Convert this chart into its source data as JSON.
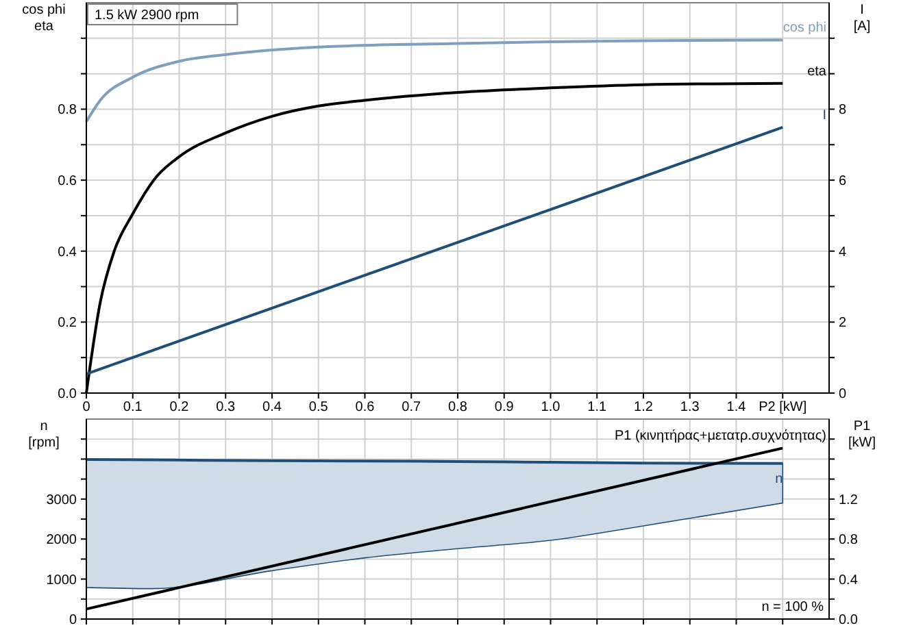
{
  "chart_data": [
    {
      "type": "line",
      "title": "1.5 kW   2900 rpm",
      "ylabel": "cos phi\neta",
      "y2label": "I\n[A]",
      "grid": true,
      "xlim": [
        0,
        1.6
      ],
      "xticks": [
        {
          "value": 0,
          "label": "0"
        },
        0.1,
        0.2,
        0.3,
        0.4,
        0.5,
        0.6,
        0.7,
        0.8,
        0.9,
        {
          "value": 1,
          "label": "1.0"
        },
        1.1,
        1.2,
        1.3,
        1.4,
        {
          "value": 1.5,
          "label": "P2 [kW]"
        }
      ],
      "ylim": [
        0,
        1.1
      ],
      "yticks": [
        {
          "value": 0,
          "label": "0.0"
        },
        {
          "value": 0.1,
          "label": null
        },
        0.2,
        {
          "value": 0.3,
          "label": null
        },
        0.4,
        {
          "value": 0.5,
          "label": null
        },
        0.6,
        {
          "value": 0.7,
          "label": null
        },
        0.8,
        {
          "value": 0.9,
          "label": null
        },
        {
          "value": 1,
          "label": null
        }
      ],
      "y2lim": [
        0,
        11
      ],
      "y2ticks": [
        0,
        {
          "value": 1,
          "label": null
        },
        2,
        {
          "value": 3,
          "label": null
        },
        4,
        {
          "value": 5,
          "label": null
        },
        6,
        {
          "value": 7,
          "label": null
        },
        8,
        {
          "value": 9,
          "label": null
        },
        {
          "value": 10,
          "label": null
        }
      ],
      "series": [
        {
          "name": "cos phi",
          "color": "#7f9fbf",
          "x": [
            0,
            0.03,
            0.1,
            0.2,
            0.3,
            0.5,
            0.8,
            1.0,
            1.2,
            1.5
          ],
          "values": [
            0.765,
            0.825,
            0.89,
            0.935,
            0.954,
            0.975,
            0.985,
            0.99,
            0.993,
            0.995
          ]
        },
        {
          "name": "eta",
          "color": "#000000",
          "x": [
            0,
            0.03,
            0.06,
            0.1,
            0.15,
            0.2,
            0.3,
            0.4,
            0.5,
            0.6,
            0.8,
            1.0,
            1.2,
            1.5
          ],
          "values": [
            0,
            0.256,
            0.4,
            0.505,
            0.608,
            0.666,
            0.733,
            0.78,
            0.809,
            0.825,
            0.847,
            0.86,
            0.869,
            0.873
          ]
        },
        {
          "name": "I",
          "color": "#1f4e79",
          "axis": "y2",
          "x": [
            0,
            1.5
          ],
          "values": [
            0.54,
            7.49
          ]
        }
      ]
    },
    {
      "type": "line",
      "ylabel": "n\n[rpm]",
      "y2label": "P1\n[kW]",
      "grid": true,
      "tick_labels": "y",
      "annotations": [
        "n = 100 %"
      ],
      "xlim": [
        0,
        1.6
      ],
      "xticks": [
        0,
        0.1,
        0.2,
        0.3,
        0.4,
        0.5,
        0.6,
        0.7,
        0.8,
        0.9,
        1,
        1.1,
        1.2,
        1.3,
        1.4,
        1.5
      ],
      "ylim": [
        0,
        5000
      ],
      "yticks": [
        0,
        {
          "value": 500,
          "label": null
        },
        1000,
        {
          "value": 1500,
          "label": null
        },
        2000,
        {
          "value": 2500,
          "label": null
        },
        3000,
        {
          "value": 3500,
          "label": null
        },
        {
          "value": 4000,
          "label": null
        },
        {
          "value": 4500,
          "label": null
        }
      ],
      "y2lim": [
        0,
        2
      ],
      "y2ticks": [
        {
          "value": 0,
          "label": "0.0"
        },
        {
          "value": 0.2,
          "label": null
        },
        0.4,
        {
          "value": 0.6,
          "label": null
        },
        0.8,
        {
          "value": 1,
          "label": null
        },
        1.2,
        {
          "value": 1.4,
          "label": null
        },
        {
          "value": 1.6,
          "label": null
        },
        {
          "value": 1.8,
          "label": null
        }
      ],
      "series": [
        {
          "name": "n",
          "color": "#1f4e79",
          "x": [
            0,
            0.14,
            0.4,
            0.6,
            0.8,
            1.0,
            1.2,
            1.5
          ],
          "values": [
            3990,
            3980,
            3960,
            3950,
            3940,
            3920,
            3900,
            3890
          ],
          "upper": [
            3990,
            3980,
            3960,
            3950,
            3940,
            3920,
            3900,
            3890
          ],
          "lower": [
            790,
            760,
            1210,
            1530,
            1760,
            1970,
            2330,
            2900
          ]
        },
        {
          "name": "P1 (κινητήρας+μετατρ.συχνότητας)",
          "color": "#000000",
          "axis": "y2",
          "x": [
            0,
            1.5
          ],
          "values": [
            0.1,
            1.71
          ]
        }
      ]
    }
  ]
}
